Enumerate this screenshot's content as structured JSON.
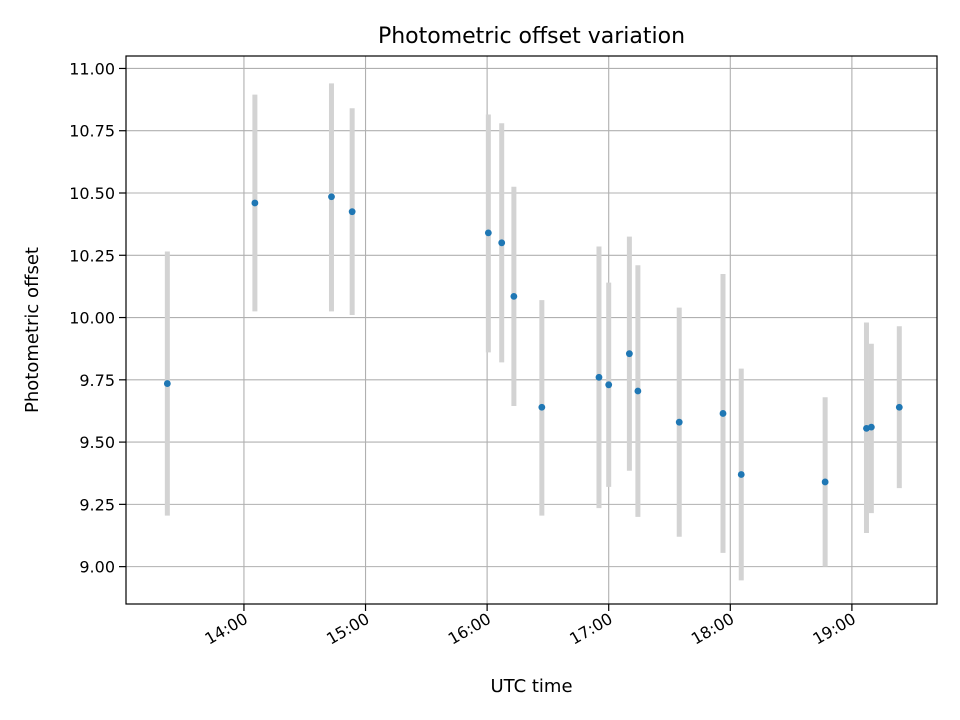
{
  "chart_data": {
    "type": "scatter",
    "title": "Photometric offset variation",
    "xlabel": "UTC time",
    "ylabel": "Photometric offset",
    "x_unit": "hours UTC",
    "xlim": [
      13.03,
      19.7
    ],
    "ylim": [
      8.85,
      11.05
    ],
    "x_ticks": [
      {
        "value": 14,
        "label": "14:00"
      },
      {
        "value": 15,
        "label": "15:00"
      },
      {
        "value": 16,
        "label": "16:00"
      },
      {
        "value": 17,
        "label": "17:00"
      },
      {
        "value": 18,
        "label": "18:00"
      },
      {
        "value": 19,
        "label": "19:00"
      }
    ],
    "y_ticks": [
      {
        "value": 9.0,
        "label": "9.00"
      },
      {
        "value": 9.25,
        "label": "9.25"
      },
      {
        "value": 9.5,
        "label": "9.50"
      },
      {
        "value": 9.75,
        "label": "9.75"
      },
      {
        "value": 10.0,
        "label": "10.00"
      },
      {
        "value": 10.25,
        "label": "10.25"
      },
      {
        "value": 10.5,
        "label": "10.50"
      },
      {
        "value": 10.75,
        "label": "10.75"
      },
      {
        "value": 11.0,
        "label": "11.00"
      }
    ],
    "grid": true,
    "colors": {
      "marker": "#1f77b4",
      "errorbar": "#d3d3d3",
      "grid": "#b0b0b0"
    },
    "points": [
      {
        "x": 13.37,
        "y": 9.735,
        "lo": 9.205,
        "hi": 10.265
      },
      {
        "x": 14.09,
        "y": 10.46,
        "lo": 10.025,
        "hi": 10.895
      },
      {
        "x": 14.72,
        "y": 10.485,
        "lo": 10.025,
        "hi": 10.94
      },
      {
        "x": 14.89,
        "y": 10.425,
        "lo": 10.01,
        "hi": 10.84
      },
      {
        "x": 16.01,
        "y": 10.34,
        "lo": 9.86,
        "hi": 10.815
      },
      {
        "x": 16.12,
        "y": 10.3,
        "lo": 9.82,
        "hi": 10.78
      },
      {
        "x": 16.22,
        "y": 10.085,
        "lo": 9.645,
        "hi": 10.525
      },
      {
        "x": 16.45,
        "y": 9.64,
        "lo": 9.205,
        "hi": 10.07
      },
      {
        "x": 16.92,
        "y": 9.76,
        "lo": 9.235,
        "hi": 10.285
      },
      {
        "x": 17.0,
        "y": 9.73,
        "lo": 9.32,
        "hi": 10.14
      },
      {
        "x": 17.17,
        "y": 9.855,
        "lo": 9.385,
        "hi": 10.325
      },
      {
        "x": 17.24,
        "y": 9.705,
        "lo": 9.2,
        "hi": 10.21
      },
      {
        "x": 17.58,
        "y": 9.58,
        "lo": 9.12,
        "hi": 10.04
      },
      {
        "x": 17.94,
        "y": 9.615,
        "lo": 9.055,
        "hi": 10.175
      },
      {
        "x": 18.09,
        "y": 9.37,
        "lo": 8.945,
        "hi": 9.795
      },
      {
        "x": 18.78,
        "y": 9.34,
        "lo": 9.0,
        "hi": 9.68
      },
      {
        "x": 19.12,
        "y": 9.555,
        "lo": 9.135,
        "hi": 9.98
      },
      {
        "x": 19.16,
        "y": 9.56,
        "lo": 9.215,
        "hi": 9.895
      },
      {
        "x": 19.39,
        "y": 9.64,
        "lo": 9.315,
        "hi": 9.965
      }
    ]
  }
}
